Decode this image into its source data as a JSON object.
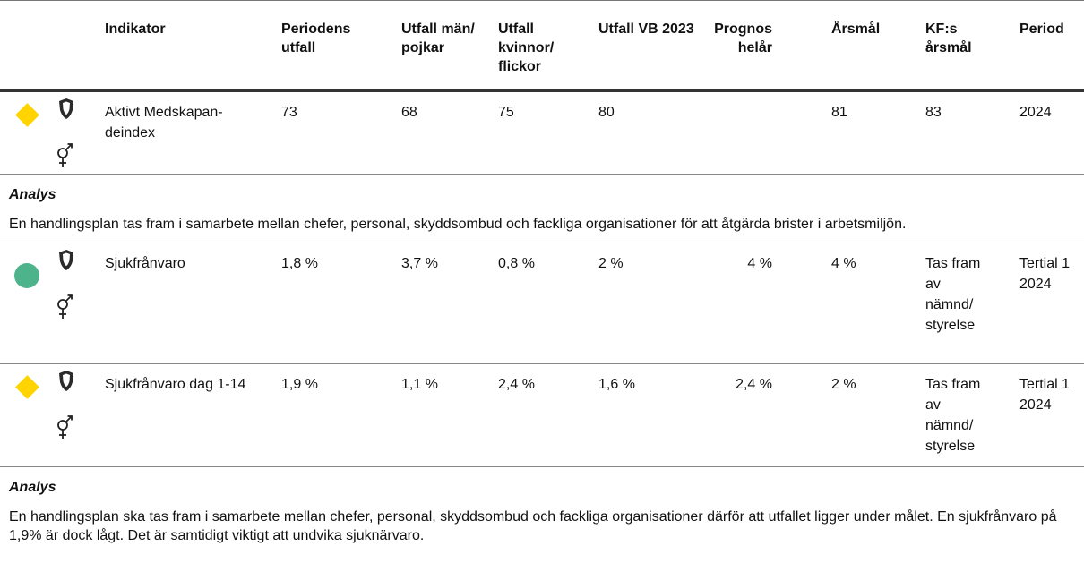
{
  "table": {
    "columns": [
      "Indikator",
      "Periodens utfall",
      "Utfall män/pojkar",
      "Utfall kvinnor/flickor",
      "Utfall VB 2023",
      "Prognos helår",
      "Årsmål",
      "KF:s årsmål",
      "Period"
    ],
    "rows": [
      {
        "status_shape": "diamond",
        "status_color": "#ffd400",
        "indicator": "Aktivt Medskapan-deindex",
        "cells": [
          "73",
          "68",
          "75",
          "80",
          null,
          "81",
          "83",
          "2024"
        ],
        "analysis": {
          "heading": "Analys",
          "text": "En handlingsplan tas fram i samarbete mellan chefer, personal, skyddsombud och fackliga organisationer för att åtgärda brister i arbetsmiljön."
        }
      },
      {
        "status_shape": "circle",
        "status_color": "#4cb38a",
        "indicator": "Sjukfrånvaro",
        "cells": [
          "1,8 %",
          "3,7 %",
          "0,8 %",
          "2 %",
          "4 %",
          "4 %",
          "Tas fram av nämnd/styrelse",
          "Tertial 1 2024"
        ]
      },
      {
        "status_shape": "diamond",
        "status_color": "#ffd400",
        "indicator": "Sjukfrånvaro dag 1-14",
        "cells": [
          "1,9 %",
          "1,1 %",
          "2,4 %",
          "1,6 %",
          "2,4 %",
          "2 %",
          "Tas fram av nämnd/styrelse",
          "Tertial 1 2024"
        ],
        "analysis": {
          "heading": "Analys",
          "text": "En handlingsplan ska tas fram i samarbete mellan chefer, personal, skyddsombud och fackliga organisationer därför att utfallet ligger under målet. En sjukfrånvaro på 1,9% är dock lågt. Det är samtidigt viktigt att undvika sjuknärvaro."
        }
      }
    ]
  }
}
